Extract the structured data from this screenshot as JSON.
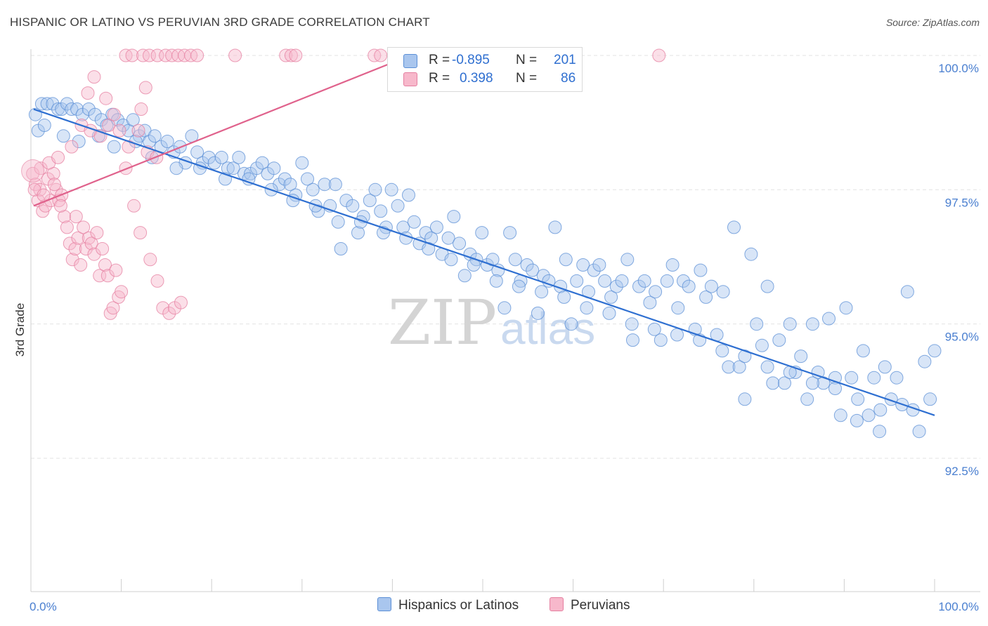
{
  "title": "HISPANIC OR LATINO VS PERUVIAN 3RD GRADE CORRELATION CHART",
  "source": "Source: ZipAtlas.com",
  "watermark": {
    "zip": "ZIP",
    "atlas": "atlas"
  },
  "colors": {
    "blue_fill": "#a9c6ee",
    "blue_stroke": "#5b8fd6",
    "blue_line": "#2e6fd1",
    "pink_fill": "#f7b8cb",
    "pink_stroke": "#e57fa0",
    "pink_line": "#e0628c",
    "grid": "#e3e3e3",
    "tick_text": "#4a7fd0"
  },
  "legend": {
    "rows": [
      {
        "r_label": "R =",
        "r_value": "-0.895",
        "n_label": "N =",
        "n_value": "201"
      },
      {
        "r_label": "R =",
        "r_value": "0.398",
        "n_label": "N =",
        "n_value": "86"
      }
    ]
  },
  "bottom_legend": [
    "Hispanics or Latinos",
    "Peruvians"
  ],
  "chart_data": {
    "type": "scatter",
    "ylabel": "3rd Grade",
    "xlabel": "",
    "xlim": [
      0,
      100
    ],
    "ylim": [
      90.0,
      100.3
    ],
    "x_tick_labels": [
      "0.0%",
      "100.0%"
    ],
    "y_ticks": [
      100.0,
      97.5,
      95.0,
      92.5
    ],
    "y_tick_labels": [
      "100.0%",
      "97.5%",
      "95.0%",
      "92.5%"
    ],
    "grid": "horizontal dashed",
    "series": [
      {
        "name": "Hispanics or Latinos",
        "R": -0.895,
        "N": 201,
        "trend": [
          [
            0.3,
            99.0
          ],
          [
            100,
            93.3
          ]
        ],
        "points": [
          [
            0.5,
            98.9
          ],
          [
            1.2,
            99.1
          ],
          [
            1.8,
            99.1
          ],
          [
            2.4,
            99.1
          ],
          [
            3.0,
            99.0
          ],
          [
            3.4,
            99.0
          ],
          [
            4.0,
            99.1
          ],
          [
            4.5,
            99.0
          ],
          [
            5.1,
            99.0
          ],
          [
            5.7,
            98.9
          ],
          [
            6.4,
            99.0
          ],
          [
            7.1,
            98.9
          ],
          [
            7.8,
            98.8
          ],
          [
            8.4,
            98.7
          ],
          [
            9.0,
            98.9
          ],
          [
            9.6,
            98.8
          ],
          [
            10.2,
            98.7
          ],
          [
            10.8,
            98.6
          ],
          [
            11.3,
            98.8
          ],
          [
            12.0,
            98.5
          ],
          [
            12.6,
            98.6
          ],
          [
            13.1,
            98.4
          ],
          [
            13.7,
            98.5
          ],
          [
            14.4,
            98.3
          ],
          [
            15.1,
            98.4
          ],
          [
            15.8,
            98.2
          ],
          [
            16.5,
            98.3
          ],
          [
            17.1,
            98.0
          ],
          [
            17.8,
            98.5
          ],
          [
            18.4,
            98.2
          ],
          [
            19.0,
            98.0
          ],
          [
            19.7,
            98.1
          ],
          [
            20.3,
            98.0
          ],
          [
            21.1,
            98.1
          ],
          [
            21.8,
            97.9
          ],
          [
            22.4,
            97.9
          ],
          [
            23.0,
            98.1
          ],
          [
            23.6,
            97.8
          ],
          [
            24.3,
            97.8
          ],
          [
            25.0,
            97.9
          ],
          [
            25.6,
            98.0
          ],
          [
            26.2,
            97.8
          ],
          [
            26.9,
            97.9
          ],
          [
            27.5,
            97.6
          ],
          [
            28.1,
            97.7
          ],
          [
            28.7,
            97.6
          ],
          [
            29.3,
            97.4
          ],
          [
            30.0,
            98.0
          ],
          [
            30.6,
            97.7
          ],
          [
            31.2,
            97.5
          ],
          [
            31.8,
            97.1
          ],
          [
            32.5,
            97.6
          ],
          [
            33.1,
            97.2
          ],
          [
            33.7,
            97.6
          ],
          [
            34.3,
            96.4
          ],
          [
            34.9,
            97.3
          ],
          [
            35.6,
            97.2
          ],
          [
            36.2,
            96.7
          ],
          [
            36.8,
            97.0
          ],
          [
            37.5,
            97.3
          ],
          [
            38.1,
            97.5
          ],
          [
            38.7,
            97.1
          ],
          [
            39.3,
            96.8
          ],
          [
            39.9,
            97.5
          ],
          [
            40.6,
            97.2
          ],
          [
            41.2,
            96.8
          ],
          [
            41.8,
            97.4
          ],
          [
            42.4,
            96.9
          ],
          [
            43.0,
            96.5
          ],
          [
            43.7,
            96.7
          ],
          [
            44.3,
            96.6
          ],
          [
            44.9,
            96.8
          ],
          [
            45.5,
            96.3
          ],
          [
            46.2,
            96.6
          ],
          [
            46.8,
            97.0
          ],
          [
            47.4,
            96.5
          ],
          [
            48.0,
            95.9
          ],
          [
            48.6,
            96.3
          ],
          [
            49.3,
            96.2
          ],
          [
            49.9,
            96.7
          ],
          [
            50.5,
            96.1
          ],
          [
            51.1,
            96.2
          ],
          [
            51.7,
            96.0
          ],
          [
            52.4,
            95.3
          ],
          [
            53.0,
            96.7
          ],
          [
            53.6,
            96.2
          ],
          [
            54.2,
            95.8
          ],
          [
            54.9,
            96.1
          ],
          [
            55.5,
            96.0
          ],
          [
            56.1,
            95.2
          ],
          [
            56.7,
            95.9
          ],
          [
            57.3,
            95.8
          ],
          [
            58.0,
            96.8
          ],
          [
            58.6,
            95.7
          ],
          [
            59.2,
            96.2
          ],
          [
            59.8,
            95.0
          ],
          [
            60.4,
            95.8
          ],
          [
            61.1,
            96.1
          ],
          [
            61.7,
            95.6
          ],
          [
            62.3,
            96.0
          ],
          [
            62.9,
            96.1
          ],
          [
            63.5,
            95.8
          ],
          [
            64.2,
            95.5
          ],
          [
            64.8,
            95.7
          ],
          [
            65.4,
            95.8
          ],
          [
            66.0,
            96.2
          ],
          [
            66.6,
            94.7
          ],
          [
            67.3,
            95.7
          ],
          [
            67.9,
            95.8
          ],
          [
            68.5,
            95.4
          ],
          [
            69.1,
            95.6
          ],
          [
            69.7,
            94.7
          ],
          [
            70.4,
            95.8
          ],
          [
            71.0,
            96.1
          ],
          [
            71.6,
            95.3
          ],
          [
            72.2,
            95.8
          ],
          [
            72.8,
            95.7
          ],
          [
            73.5,
            94.9
          ],
          [
            74.1,
            96.0
          ],
          [
            74.7,
            95.5
          ],
          [
            75.3,
            95.7
          ],
          [
            75.9,
            94.8
          ],
          [
            76.6,
            95.6
          ],
          [
            77.2,
            94.2
          ],
          [
            77.8,
            96.8
          ],
          [
            78.4,
            94.2
          ],
          [
            79.0,
            93.6
          ],
          [
            79.7,
            96.3
          ],
          [
            80.3,
            95.0
          ],
          [
            80.9,
            94.6
          ],
          [
            81.5,
            95.7
          ],
          [
            82.1,
            93.9
          ],
          [
            82.8,
            94.7
          ],
          [
            83.4,
            93.9
          ],
          [
            84.0,
            95.0
          ],
          [
            84.6,
            94.1
          ],
          [
            85.2,
            94.4
          ],
          [
            85.9,
            93.6
          ],
          [
            86.5,
            95.0
          ],
          [
            87.1,
            94.1
          ],
          [
            87.7,
            93.9
          ],
          [
            88.3,
            95.1
          ],
          [
            89.0,
            94.0
          ],
          [
            89.6,
            93.3
          ],
          [
            90.2,
            95.3
          ],
          [
            90.8,
            94.0
          ],
          [
            91.4,
            93.2
          ],
          [
            92.1,
            94.5
          ],
          [
            92.7,
            93.3
          ],
          [
            93.3,
            94.0
          ],
          [
            93.9,
            93.0
          ],
          [
            94.5,
            94.2
          ],
          [
            95.2,
            93.6
          ],
          [
            95.8,
            94.0
          ],
          [
            96.4,
            93.5
          ],
          [
            97.0,
            95.6
          ],
          [
            97.6,
            93.4
          ],
          [
            98.3,
            93.0
          ],
          [
            98.9,
            94.3
          ],
          [
            99.5,
            93.6
          ],
          [
            100.0,
            94.5
          ],
          [
            0.8,
            98.6
          ],
          [
            1.5,
            98.7
          ],
          [
            3.6,
            98.5
          ],
          [
            5.3,
            98.4
          ],
          [
            7.5,
            98.5
          ],
          [
            9.2,
            98.3
          ],
          [
            11.6,
            98.4
          ],
          [
            13.4,
            98.1
          ],
          [
            16.1,
            97.9
          ],
          [
            18.7,
            97.9
          ],
          [
            21.5,
            97.7
          ],
          [
            24.1,
            97.7
          ],
          [
            26.6,
            97.5
          ],
          [
            29.0,
            97.3
          ],
          [
            31.5,
            97.2
          ],
          [
            34.0,
            96.9
          ],
          [
            36.5,
            96.9
          ],
          [
            39.0,
            96.7
          ],
          [
            41.5,
            96.6
          ],
          [
            44.0,
            96.4
          ],
          [
            46.5,
            96.2
          ],
          [
            49.0,
            96.1
          ],
          [
            51.5,
            95.8
          ],
          [
            54.0,
            95.7
          ],
          [
            56.5,
            95.6
          ],
          [
            59.0,
            95.5
          ],
          [
            61.5,
            95.3
          ],
          [
            64.0,
            95.2
          ],
          [
            66.5,
            95.0
          ],
          [
            69.0,
            94.9
          ],
          [
            71.5,
            94.8
          ],
          [
            74.0,
            94.7
          ],
          [
            76.5,
            94.5
          ],
          [
            79.0,
            94.4
          ],
          [
            81.5,
            94.2
          ],
          [
            84.0,
            94.1
          ],
          [
            86.5,
            93.9
          ],
          [
            89.0,
            93.8
          ],
          [
            91.5,
            93.6
          ],
          [
            94.0,
            93.4
          ]
        ]
      },
      {
        "name": "Peruvians",
        "R": 0.398,
        "N": 86,
        "trend": [
          [
            0.3,
            97.2
          ],
          [
            42.0,
            100.0
          ]
        ],
        "points": [
          [
            0.2,
            97.8
          ],
          [
            0.5,
            97.6
          ],
          [
            0.8,
            97.3
          ],
          [
            1.0,
            97.5
          ],
          [
            1.3,
            97.1
          ],
          [
            1.6,
            97.2
          ],
          [
            1.9,
            97.7
          ],
          [
            2.2,
            97.3
          ],
          [
            2.5,
            97.8
          ],
          [
            2.8,
            97.5
          ],
          [
            3.1,
            97.3
          ],
          [
            3.4,
            97.4
          ],
          [
            3.7,
            97.0
          ],
          [
            4.0,
            96.8
          ],
          [
            4.3,
            96.5
          ],
          [
            4.6,
            96.2
          ],
          [
            4.9,
            96.4
          ],
          [
            5.2,
            96.6
          ],
          [
            5.5,
            96.1
          ],
          [
            5.8,
            96.8
          ],
          [
            6.1,
            96.4
          ],
          [
            6.4,
            96.6
          ],
          [
            6.7,
            96.5
          ],
          [
            7.0,
            96.3
          ],
          [
            7.3,
            96.7
          ],
          [
            7.6,
            95.9
          ],
          [
            7.9,
            96.4
          ],
          [
            8.2,
            96.1
          ],
          [
            8.5,
            95.9
          ],
          [
            8.8,
            95.2
          ],
          [
            9.1,
            95.3
          ],
          [
            9.4,
            96.0
          ],
          [
            9.7,
            95.5
          ],
          [
            10.0,
            95.6
          ],
          [
            1.1,
            97.9
          ],
          [
            2.0,
            98.0
          ],
          [
            3.0,
            98.1
          ],
          [
            4.5,
            98.3
          ],
          [
            5.6,
            98.7
          ],
          [
            6.6,
            98.6
          ],
          [
            7.7,
            98.5
          ],
          [
            8.6,
            98.7
          ],
          [
            9.8,
            98.6
          ],
          [
            10.8,
            98.3
          ],
          [
            11.9,
            98.6
          ],
          [
            12.9,
            98.2
          ],
          [
            13.9,
            98.1
          ],
          [
            6.3,
            99.3
          ],
          [
            7.0,
            99.6
          ],
          [
            9.2,
            98.9
          ],
          [
            12.2,
            99.0
          ],
          [
            12.7,
            99.4
          ],
          [
            8.3,
            99.2
          ],
          [
            10.5,
            97.9
          ],
          [
            11.4,
            97.2
          ],
          [
            12.1,
            96.7
          ],
          [
            13.2,
            96.2
          ],
          [
            14.0,
            95.8
          ],
          [
            14.6,
            95.3
          ],
          [
            15.3,
            95.2
          ],
          [
            15.9,
            95.3
          ],
          [
            16.6,
            95.4
          ],
          [
            10.5,
            100.0
          ],
          [
            11.2,
            100.0
          ],
          [
            12.4,
            100.0
          ],
          [
            13.1,
            100.0
          ],
          [
            14.0,
            100.0
          ],
          [
            14.9,
            100.0
          ],
          [
            15.6,
            100.0
          ],
          [
            16.3,
            100.0
          ],
          [
            17.0,
            100.0
          ],
          [
            17.7,
            100.0
          ],
          [
            18.4,
            100.0
          ],
          [
            22.6,
            100.0
          ],
          [
            28.2,
            100.0
          ],
          [
            28.8,
            100.0
          ],
          [
            29.3,
            100.0
          ],
          [
            38.0,
            100.0
          ],
          [
            38.7,
            100.0
          ],
          [
            41.5,
            100.0
          ],
          [
            69.5,
            100.0
          ],
          [
            0.4,
            97.5
          ],
          [
            1.4,
            97.4
          ],
          [
            2.6,
            97.6
          ],
          [
            3.3,
            97.2
          ],
          [
            5.0,
            97.0
          ]
        ]
      }
    ]
  }
}
